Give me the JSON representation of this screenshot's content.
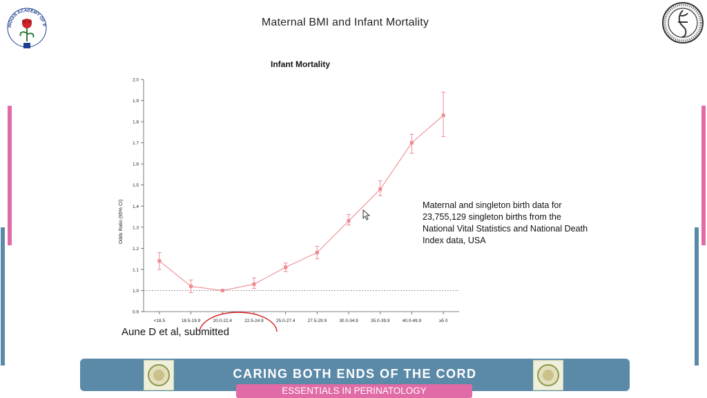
{
  "slide": {
    "title": "Maternal BMI and Infant Mortality",
    "logo_left": {
      "icon": "academy-of-pediatrics-logo",
      "ring_text": "INDIAN ACADEMY OF PEDIATRICS"
    },
    "logo_right": {
      "icon": "society-seal-logo"
    },
    "note": "Maternal and singleton birth data for 23,755,129 singleton births from the National Vital Statistics and National Death Index data, USA",
    "citation": "Aune D et al, submitted",
    "footer": {
      "title": "CARING BOTH ENDS OF THE CORD",
      "subtitle": "ESSENTIALS IN PERINATOLOGY",
      "emblem_icon": "emblem-badge-icon"
    },
    "colors": {
      "pink_accent": "#e06ba6",
      "blue_accent": "#5b8aa8",
      "series": "#f08a90",
      "highlight_circle": "#d22020"
    }
  },
  "chart_data": {
    "type": "line",
    "title": "Infant Mortality",
    "xlabel": "",
    "ylabel": "Odds Ratio (95% CI)",
    "categories": [
      "<18.5",
      "18.5-19.9",
      "20.0-22.4",
      "22.5-24.9",
      "25.0-27.4",
      "27.5-29.9",
      "30.0-34.9",
      "35.0-39.9",
      "40.0-49.9",
      "≥5 0"
    ],
    "series": [
      {
        "values": [
          1.14,
          1.02,
          1.0,
          1.03,
          1.11,
          1.18,
          1.33,
          1.48,
          1.7,
          1.83
        ],
        "ci_low": [
          1.1,
          0.99,
          1.0,
          1.01,
          1.09,
          1.15,
          1.31,
          1.45,
          1.65,
          1.73
        ],
        "ci_high": [
          1.18,
          1.05,
          1.0,
          1.06,
          1.13,
          1.21,
          1.36,
          1.52,
          1.74,
          1.94
        ]
      }
    ],
    "ylim": [
      0.9,
      2.0
    ],
    "yticks": [
      "0.9",
      "1.0",
      "1.1",
      "1.2",
      "1.3",
      "1.4",
      "1.5",
      "1.6",
      "1.7",
      "1.8",
      "1.9",
      "2.0"
    ],
    "reference_line": 1.0,
    "highlighted_categories": [
      "20.0-22.4",
      "22.5-24.9"
    ],
    "grid": false
  }
}
